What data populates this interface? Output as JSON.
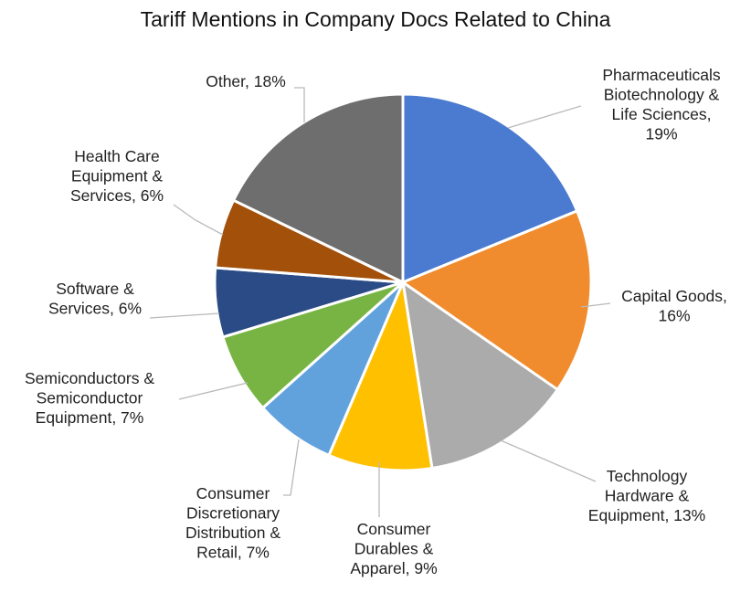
{
  "chart_data": {
    "type": "pie",
    "title": "Tariff Mentions in Company Docs Related to China",
    "slices": [
      {
        "label": [
          "Pharmaceuticals",
          "Biotechnology &",
          "Life Sciences,",
          "19%"
        ],
        "category": "Pharmaceuticals Biotechnology & Life Sciences",
        "value": 19,
        "color": "#4A7BD0"
      },
      {
        "label": [
          "Capital Goods,",
          "16%"
        ],
        "category": "Capital Goods",
        "value": 16,
        "color": "#F08C2E"
      },
      {
        "label": [
          "Technology",
          "Hardware &",
          "Equipment, 13%"
        ],
        "category": "Technology Hardware & Equipment",
        "value": 13,
        "color": "#ABABAB"
      },
      {
        "label": [
          "Consumer",
          "Durables &",
          "Apparel, 9%"
        ],
        "category": "Consumer Durables & Apparel",
        "value": 9,
        "color": "#FFC000"
      },
      {
        "label": [
          "Consumer",
          "Discretionary",
          "Distribution &",
          "Retail, 7%"
        ],
        "category": "Consumer Discretionary Distribution & Retail",
        "value": 7,
        "color": "#62A2DC"
      },
      {
        "label": [
          "Semiconductors &",
          "Semiconductor",
          "Equipment, 7%"
        ],
        "category": "Semiconductors & Semiconductor Equipment",
        "value": 7,
        "color": "#78B443"
      },
      {
        "label": [
          "Software &",
          "Services, 6%"
        ],
        "category": "Software & Services",
        "value": 6,
        "color": "#2A4B86"
      },
      {
        "label": [
          "Health Care",
          "Equipment &",
          "Services, 6%"
        ],
        "category": "Health Care Equipment & Services",
        "value": 6,
        "color": "#A2500A"
      },
      {
        "label": [
          "Other, 18%"
        ],
        "category": "Other",
        "value": 18,
        "color": "#6E6E6E"
      }
    ]
  }
}
